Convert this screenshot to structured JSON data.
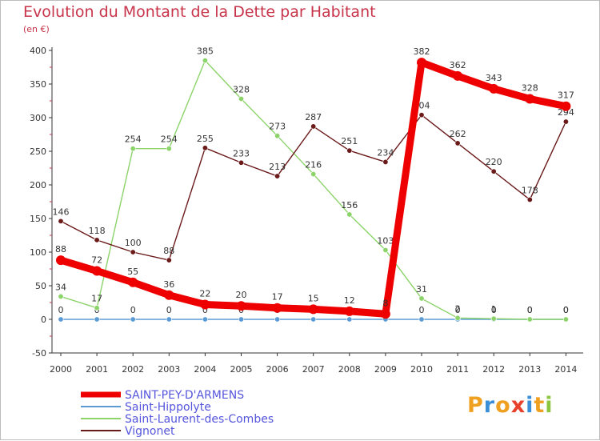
{
  "chart_data": {
    "type": "line",
    "title": "Evolution du Montant de la Dette par Habitant",
    "unit_label": "(en €)",
    "x": [
      "2000",
      "2001",
      "2002",
      "2003",
      "2004",
      "2005",
      "2006",
      "2007",
      "2008",
      "2009",
      "2010",
      "2011",
      "2012",
      "2013",
      "2014"
    ],
    "ylim": [
      -50,
      400
    ],
    "yticks": [
      -50,
      0,
      50,
      100,
      150,
      200,
      250,
      300,
      350,
      400
    ],
    "grid": false,
    "legend_position": "bottom-left",
    "series": [
      {
        "name": "SAINT-PEY-D'ARMENS",
        "color": "#ee0000",
        "emphasis": true,
        "values": [
          88,
          72,
          55,
          36,
          22,
          20,
          17,
          15,
          12,
          8,
          382,
          362,
          343,
          328,
          317
        ]
      },
      {
        "name": "Saint-Hippolyte",
        "color": "#5b9bd5",
        "emphasis": false,
        "values": [
          0,
          0,
          0,
          0,
          0,
          0,
          0,
          0,
          0,
          0,
          0,
          0,
          0,
          0,
          0
        ]
      },
      {
        "name": "Saint-Laurent-des-Combes",
        "color": "#8cd36a",
        "emphasis": false,
        "values": [
          34,
          17,
          254,
          254,
          385,
          328,
          273,
          216,
          156,
          103,
          31,
          2,
          1,
          0,
          0
        ]
      },
      {
        "name": "Vignonet",
        "color": "#6b1a1a",
        "emphasis": false,
        "values": [
          146,
          118,
          100,
          88,
          255,
          233,
          213,
          287,
          251,
          234,
          304,
          262,
          220,
          178,
          294
        ]
      }
    ]
  },
  "logo": {
    "letters": [
      "P",
      "r",
      "o",
      "x",
      "i",
      "t",
      "i"
    ],
    "colors": [
      "#f0a020",
      "#3a8fd8",
      "#f0a020",
      "#e8402a",
      "#3a8fd8",
      "#f0a020",
      "#8cc63f"
    ]
  }
}
